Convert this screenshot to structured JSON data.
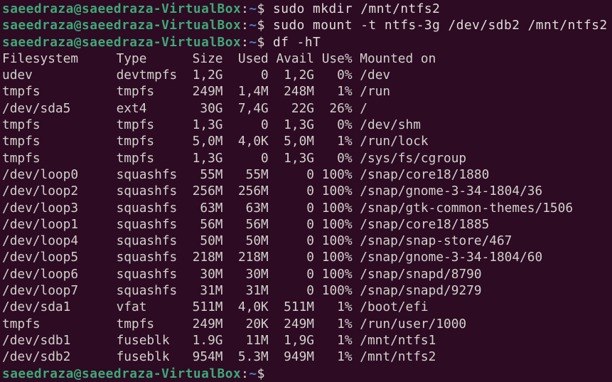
{
  "prompt": {
    "user_host": "saeedraza@saeedraza-VirtualBox",
    "colon": ":",
    "path": "~",
    "symbol": "$ "
  },
  "commands": [
    "sudo mkdir /mnt/ntfs2",
    "sudo mount -t ntfs-3g /dev/sdb2 /mnt/ntfs2",
    "df -hT",
    ""
  ],
  "df": {
    "header": [
      "Filesystem",
      "Type",
      "Size",
      "Used",
      "Avail",
      "Use%",
      "Mounted on"
    ],
    "rows": [
      [
        "udev",
        "devtmpfs",
        "1,2G",
        "0",
        "1,2G",
        "0%",
        "/dev"
      ],
      [
        "tmpfs",
        "tmpfs",
        "249M",
        "1,4M",
        "248M",
        "1%",
        "/run"
      ],
      [
        "/dev/sda5",
        "ext4",
        "30G",
        "7,4G",
        "22G",
        "26%",
        "/"
      ],
      [
        "tmpfs",
        "tmpfs",
        "1,3G",
        "0",
        "1,3G",
        "0%",
        "/dev/shm"
      ],
      [
        "tmpfs",
        "tmpfs",
        "5,0M",
        "4,0K",
        "5,0M",
        "1%",
        "/run/lock"
      ],
      [
        "tmpfs",
        "tmpfs",
        "1,3G",
        "0",
        "1,3G",
        "0%",
        "/sys/fs/cgroup"
      ],
      [
        "/dev/loop0",
        "squashfs",
        "55M",
        "55M",
        "0",
        "100%",
        "/snap/core18/1880"
      ],
      [
        "/dev/loop2",
        "squashfs",
        "256M",
        "256M",
        "0",
        "100%",
        "/snap/gnome-3-34-1804/36"
      ],
      [
        "/dev/loop3",
        "squashfs",
        "63M",
        "63M",
        "0",
        "100%",
        "/snap/gtk-common-themes/1506"
      ],
      [
        "/dev/loop1",
        "squashfs",
        "56M",
        "56M",
        "0",
        "100%",
        "/snap/core18/1885"
      ],
      [
        "/dev/loop4",
        "squashfs",
        "50M",
        "50M",
        "0",
        "100%",
        "/snap/snap-store/467"
      ],
      [
        "/dev/loop5",
        "squashfs",
        "218M",
        "218M",
        "0",
        "100%",
        "/snap/gnome-3-34-1804/60"
      ],
      [
        "/dev/loop6",
        "squashfs",
        "30M",
        "30M",
        "0",
        "100%",
        "/snap/snapd/8790"
      ],
      [
        "/dev/loop7",
        "squashfs",
        "31M",
        "31M",
        "0",
        "100%",
        "/snap/snapd/9279"
      ],
      [
        "/dev/sda1",
        "vfat",
        "511M",
        "4,0K",
        "511M",
        "1%",
        "/boot/efi"
      ],
      [
        "tmpfs",
        "tmpfs",
        "249M",
        "20K",
        "249M",
        "1%",
        "/run/user/1000"
      ],
      [
        "/dev/sdb1",
        "fuseblk",
        "1.9G",
        "11M",
        "1,9G",
        "1%",
        "/mnt/ntfs1"
      ],
      [
        "/dev/sdb2",
        "fuseblk",
        "954M",
        "5.3M",
        "949M",
        "1%",
        "/mnt/ntfs2"
      ]
    ]
  },
  "colors": {
    "background": "#2c0b23",
    "prompt_user": "#3fa877",
    "prompt_path": "#4a7fc4",
    "text": "#d3d0cc"
  }
}
